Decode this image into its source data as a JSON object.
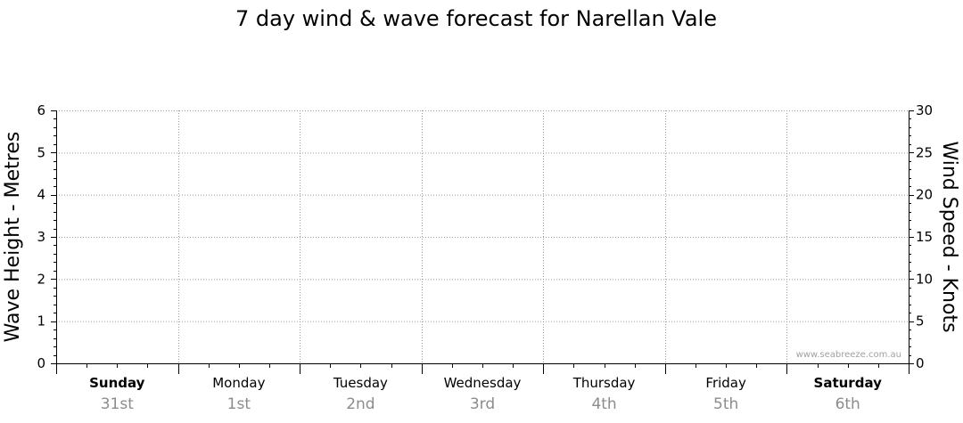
{
  "chart_data": {
    "type": "line",
    "title": "7 day wind & wave forecast for Narellan Vale",
    "y_left": {
      "label": "Wave Height - Metres",
      "range": [
        0,
        6
      ],
      "ticks": [
        0,
        1,
        2,
        3,
        4,
        5,
        6
      ]
    },
    "y_right": {
      "label": "Wind Speed - Knots",
      "range": [
        0,
        30
      ],
      "ticks": [
        0,
        5,
        10,
        15,
        20,
        25,
        30
      ]
    },
    "days": [
      {
        "name": "Sunday",
        "date": "31st",
        "bold": true
      },
      {
        "name": "Monday",
        "date": "1st",
        "bold": false
      },
      {
        "name": "Tuesday",
        "date": "2nd",
        "bold": false
      },
      {
        "name": "Wednesday",
        "date": "3rd",
        "bold": false
      },
      {
        "name": "Thursday",
        "date": "4th",
        "bold": false
      },
      {
        "name": "Friday",
        "date": "5th",
        "bold": false
      },
      {
        "name": "Saturday",
        "date": "6th",
        "bold": true
      }
    ],
    "series": [],
    "grid": true,
    "credit": "www.seabreeze.com.au"
  }
}
